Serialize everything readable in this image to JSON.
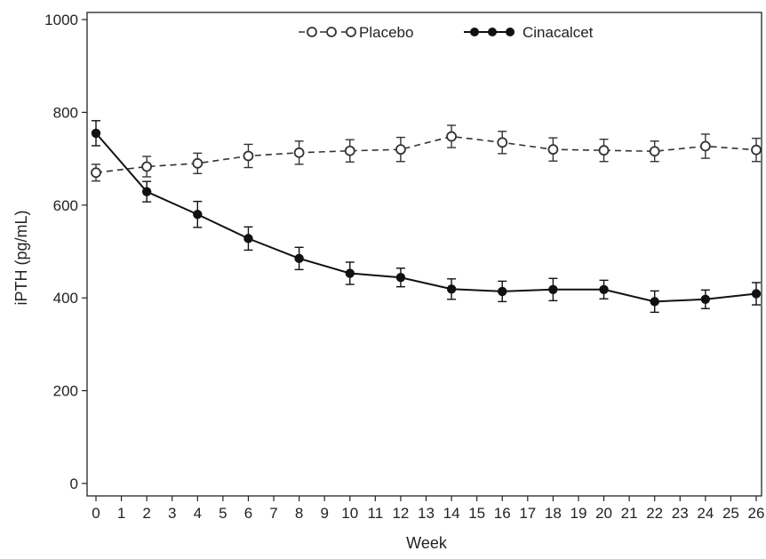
{
  "chart_data": {
    "type": "line",
    "xlabel": "Week",
    "ylabel": "iPTH (pg/mL)",
    "xlim": [
      0,
      26
    ],
    "ylim": [
      0,
      1000
    ],
    "x_ticks": [
      0,
      1,
      2,
      3,
      4,
      5,
      6,
      7,
      8,
      9,
      10,
      11,
      12,
      13,
      14,
      15,
      16,
      17,
      18,
      19,
      20,
      21,
      22,
      23,
      24,
      25,
      26
    ],
    "y_ticks": [
      0,
      200,
      400,
      600,
      800,
      1000
    ],
    "grid": false,
    "legend_position": "top",
    "series": [
      {
        "name": "Placebo",
        "marker": "open-circle",
        "line_style": "dashed",
        "color": "#333333",
        "x": [
          0,
          2,
          4,
          6,
          8,
          10,
          12,
          14,
          16,
          18,
          20,
          22,
          24,
          26
        ],
        "y": [
          670,
          683,
          690,
          706,
          713,
          717,
          720,
          748,
          735,
          720,
          718,
          716,
          727,
          719
        ],
        "error": [
          18,
          22,
          22,
          25,
          25,
          24,
          26,
          24,
          24,
          25,
          24,
          22,
          26,
          25
        ]
      },
      {
        "name": "Cinacalcet",
        "marker": "filled-circle",
        "line_style": "solid",
        "color": "#111111",
        "x": [
          0,
          2,
          4,
          6,
          8,
          10,
          12,
          14,
          16,
          18,
          20,
          22,
          24,
          26
        ],
        "y": [
          755,
          629,
          580,
          528,
          485,
          453,
          444,
          419,
          414,
          418,
          418,
          392,
          397,
          409
        ],
        "error": [
          27,
          22,
          28,
          25,
          24,
          24,
          20,
          22,
          22,
          24,
          20,
          23,
          20,
          24
        ]
      }
    ]
  }
}
